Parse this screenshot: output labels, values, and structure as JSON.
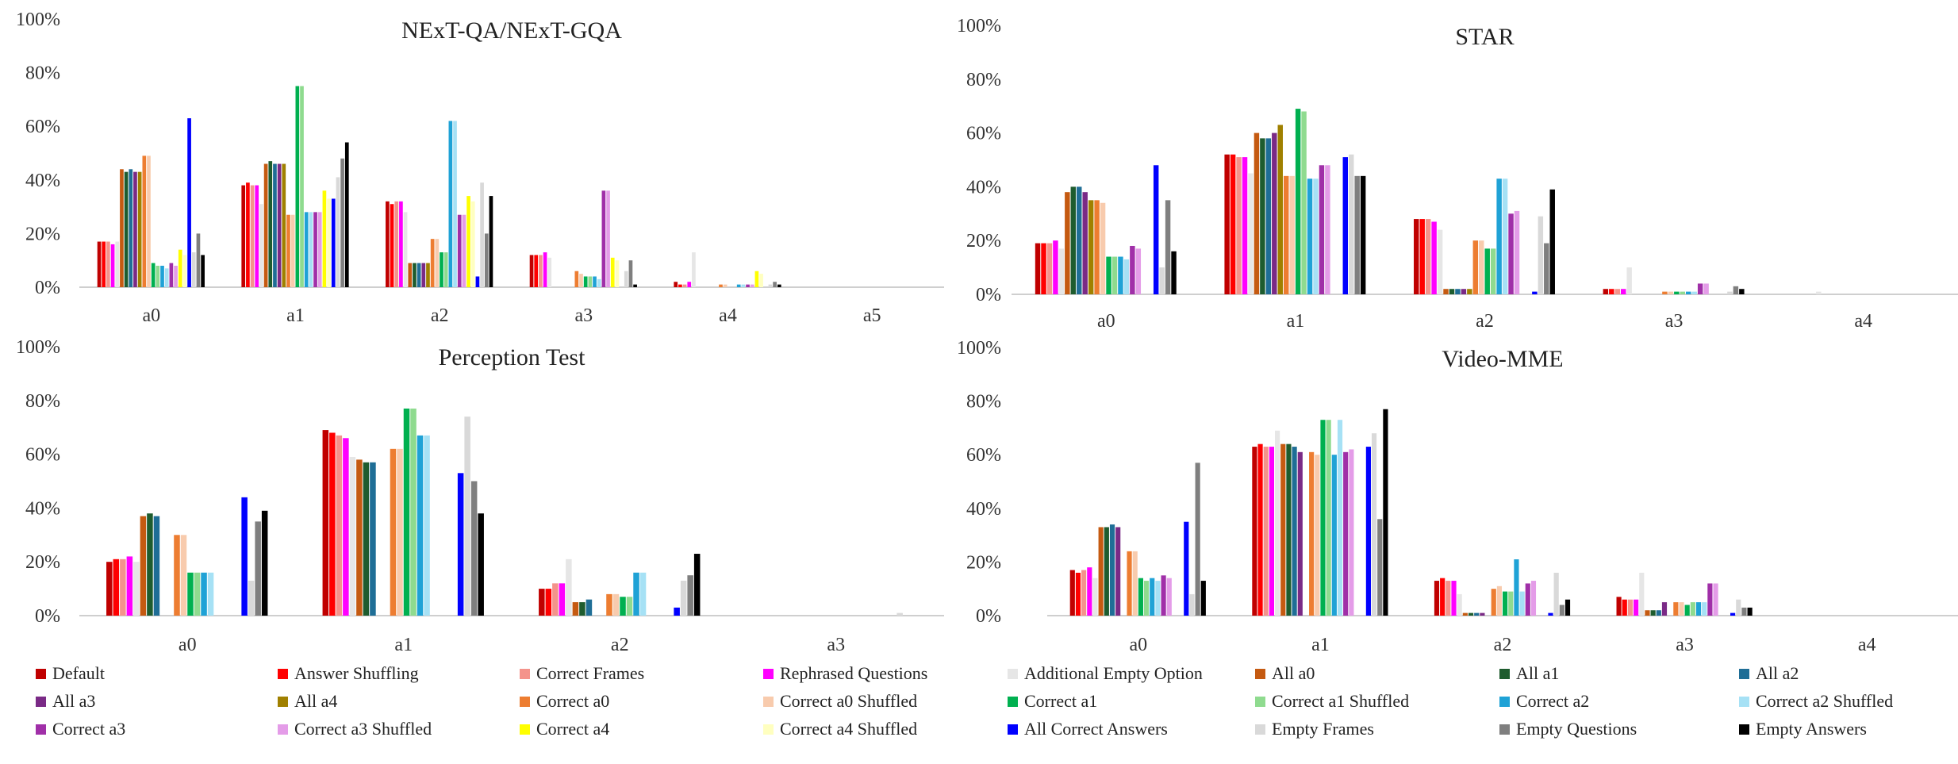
{
  "series_names": [
    "Default",
    "Answer Shuffling",
    "Correct Frames",
    "Rephrased Questions",
    "Additional Empty Option",
    "All a0",
    "All a1",
    "All a2",
    "All a3",
    "All a4",
    "Correct a0",
    "Correct a0 Shuffled",
    "Correct a1",
    "Correct a1 Shuffled",
    "Correct a2",
    "Correct a2 Shuffled",
    "Correct a3",
    "Correct a3 Shuffled",
    "Correct a4",
    "Correct a4 Shuffled",
    "All Correct Answers",
    "Empty Frames",
    "Empty Questions",
    "Empty Answers"
  ],
  "series_colors": [
    "#c00000",
    "#ff0000",
    "#f4938b",
    "#ff00ff",
    "#e6e6e6",
    "#c55a11",
    "#1e5c2e",
    "#1f6e96",
    "#7a2a86",
    "#a08000",
    "#ed7d31",
    "#f8cbad",
    "#00b050",
    "#8fdb8f",
    "#1fa2d6",
    "#a6e1f5",
    "#a02fa8",
    "#e49ce8",
    "#ffff00",
    "#ffffc0",
    "#0000ff",
    "#d9d9d9",
    "#7f7f7f",
    "#000000"
  ],
  "chart_data": [
    {
      "type": "bar",
      "title": "NExT-QA/NExT-GQA",
      "categories": [
        "a0",
        "a1",
        "a2",
        "a3",
        "a4",
        "a5"
      ],
      "ylim": [
        0,
        100
      ],
      "yticks": [
        "0%",
        "20%",
        "40%",
        "60%",
        "80%",
        "100%"
      ],
      "series": [
        {
          "name": "Default",
          "values": [
            17,
            38,
            32,
            12,
            2,
            0
          ]
        },
        {
          "name": "Answer Shuffling",
          "values": [
            17,
            39,
            31,
            12,
            1,
            0
          ]
        },
        {
          "name": "Correct Frames",
          "values": [
            17,
            38,
            32,
            12,
            1,
            0
          ]
        },
        {
          "name": "Rephrased Questions",
          "values": [
            16,
            38,
            32,
            13,
            2,
            0
          ]
        },
        {
          "name": "Additional Empty Option",
          "values": [
            17,
            31,
            28,
            11,
            13,
            0
          ]
        },
        {
          "name": "All a0",
          "values": [
            44,
            46,
            9,
            0,
            0,
            0
          ]
        },
        {
          "name": "All a1",
          "values": [
            43,
            47,
            9,
            0,
            0,
            0
          ]
        },
        {
          "name": "All a2",
          "values": [
            44,
            46,
            9,
            0,
            0,
            0
          ]
        },
        {
          "name": "All a3",
          "values": [
            43,
            46,
            9,
            0,
            0,
            0
          ]
        },
        {
          "name": "All a4",
          "values": [
            43,
            46,
            9,
            0,
            0,
            0
          ]
        },
        {
          "name": "Correct a0",
          "values": [
            49,
            27,
            18,
            6,
            1,
            0
          ]
        },
        {
          "name": "Correct a0 Shuffled",
          "values": [
            49,
            27,
            18,
            5,
            1,
            0
          ]
        },
        {
          "name": "Correct a1",
          "values": [
            9,
            75,
            13,
            4,
            0,
            0
          ]
        },
        {
          "name": "Correct a1 Shuffled",
          "values": [
            8,
            75,
            13,
            4,
            0,
            0
          ]
        },
        {
          "name": "Correct a2",
          "values": [
            8,
            28,
            62,
            4,
            1,
            0
          ]
        },
        {
          "name": "Correct a2 Shuffled",
          "values": [
            7,
            28,
            62,
            3,
            1,
            0
          ]
        },
        {
          "name": "Correct a3",
          "values": [
            9,
            28,
            27,
            36,
            1,
            0
          ]
        },
        {
          "name": "Correct a3 Shuffled",
          "values": [
            8,
            28,
            27,
            36,
            1,
            0
          ]
        },
        {
          "name": "Correct a4",
          "values": [
            14,
            36,
            34,
            11,
            6,
            0
          ]
        },
        {
          "name": "Correct a4 Shuffled",
          "values": [
            12,
            33,
            32,
            10,
            5,
            0
          ]
        },
        {
          "name": "All Correct Answers",
          "values": [
            63,
            33,
            4,
            0,
            0,
            0
          ]
        },
        {
          "name": "Empty Frames",
          "values": [
            13,
            41,
            39,
            6,
            1,
            0
          ]
        },
        {
          "name": "Empty Questions",
          "values": [
            20,
            48,
            20,
            10,
            2,
            0
          ]
        },
        {
          "name": "Empty Answers",
          "values": [
            12,
            54,
            34,
            1,
            1,
            0
          ]
        }
      ]
    },
    {
      "type": "bar",
      "title": "STAR",
      "categories": [
        "a0",
        "a1",
        "a2",
        "a3",
        "a4"
      ],
      "ylim": [
        0,
        100
      ],
      "yticks": [
        "0%",
        "20%",
        "40%",
        "60%",
        "80%",
        "100%"
      ],
      "series": [
        {
          "name": "Default",
          "values": [
            19,
            52,
            28,
            2,
            0
          ]
        },
        {
          "name": "Answer Shuffling",
          "values": [
            19,
            52,
            28,
            2,
            0
          ]
        },
        {
          "name": "Correct Frames",
          "values": [
            19,
            51,
            28,
            2,
            0
          ]
        },
        {
          "name": "Rephrased Questions",
          "values": [
            20,
            51,
            27,
            2,
            0
          ]
        },
        {
          "name": "Additional Empty Option",
          "values": [
            17,
            45,
            24,
            10,
            1
          ]
        },
        {
          "name": "All a0",
          "values": [
            38,
            60,
            2,
            0,
            0
          ]
        },
        {
          "name": "All a1",
          "values": [
            40,
            58,
            2,
            0,
            0
          ]
        },
        {
          "name": "All a2",
          "values": [
            40,
            58,
            2,
            0,
            0
          ]
        },
        {
          "name": "All a3",
          "values": [
            38,
            60,
            2,
            0,
            0
          ]
        },
        {
          "name": "All a4",
          "values": [
            35,
            63,
            2,
            0,
            0
          ]
        },
        {
          "name": "Correct a0",
          "values": [
            35,
            44,
            20,
            1,
            0
          ]
        },
        {
          "name": "Correct a0 Shuffled",
          "values": [
            34,
            44,
            20,
            1,
            0
          ]
        },
        {
          "name": "Correct a1",
          "values": [
            14,
            69,
            17,
            1,
            0
          ]
        },
        {
          "name": "Correct a1 Shuffled",
          "values": [
            14,
            68,
            17,
            1,
            0
          ]
        },
        {
          "name": "Correct a2",
          "values": [
            14,
            43,
            43,
            1,
            0
          ]
        },
        {
          "name": "Correct a2 Shuffled",
          "values": [
            13,
            43,
            43,
            1,
            0
          ]
        },
        {
          "name": "Correct a3",
          "values": [
            18,
            48,
            30,
            4,
            0
          ]
        },
        {
          "name": "Correct a3 Shuffled",
          "values": [
            17,
            48,
            31,
            4,
            0
          ]
        },
        {
          "name": "Correct a4",
          "values": [
            0,
            0,
            0,
            0,
            0
          ]
        },
        {
          "name": "Correct a4 Shuffled",
          "values": [
            0,
            0,
            0,
            0,
            0
          ]
        },
        {
          "name": "All Correct Answers",
          "values": [
            48,
            51,
            1,
            0,
            0
          ]
        },
        {
          "name": "Empty Frames",
          "values": [
            10,
            52,
            29,
            1,
            0
          ]
        },
        {
          "name": "Empty Questions",
          "values": [
            35,
            44,
            19,
            3,
            0
          ]
        },
        {
          "name": "Empty Answers",
          "values": [
            16,
            44,
            39,
            2,
            0
          ]
        }
      ]
    },
    {
      "type": "bar",
      "title": "Perception Test",
      "categories": [
        "a0",
        "a1",
        "a2",
        "a3"
      ],
      "ylim": [
        0,
        100
      ],
      "yticks": [
        "0%",
        "20%",
        "40%",
        "60%",
        "80%",
        "100%"
      ],
      "series": [
        {
          "name": "Default",
          "values": [
            20,
            69,
            10,
            0
          ]
        },
        {
          "name": "Answer Shuffling",
          "values": [
            21,
            68,
            10,
            0
          ]
        },
        {
          "name": "Correct Frames",
          "values": [
            21,
            67,
            12,
            0
          ]
        },
        {
          "name": "Rephrased Questions",
          "values": [
            22,
            66,
            12,
            0
          ]
        },
        {
          "name": "Additional Empty Option",
          "values": [
            20,
            59,
            21,
            0
          ]
        },
        {
          "name": "All a0",
          "values": [
            37,
            58,
            5,
            0
          ]
        },
        {
          "name": "All a1",
          "values": [
            38,
            57,
            5,
            0
          ]
        },
        {
          "name": "All a2",
          "values": [
            37,
            57,
            6,
            0
          ]
        },
        {
          "name": "All a3",
          "values": [
            0,
            0,
            0,
            0
          ]
        },
        {
          "name": "All a4",
          "values": [
            0,
            0,
            0,
            0
          ]
        },
        {
          "name": "Correct a0",
          "values": [
            30,
            62,
            8,
            0
          ]
        },
        {
          "name": "Correct a0 Shuffled",
          "values": [
            30,
            62,
            8,
            0
          ]
        },
        {
          "name": "Correct a1",
          "values": [
            16,
            77,
            7,
            0
          ]
        },
        {
          "name": "Correct a1 Shuffled",
          "values": [
            16,
            77,
            7,
            0
          ]
        },
        {
          "name": "Correct a2",
          "values": [
            16,
            67,
            16,
            0
          ]
        },
        {
          "name": "Correct a2 Shuffled",
          "values": [
            16,
            67,
            16,
            0
          ]
        },
        {
          "name": "Correct a3",
          "values": [
            0,
            0,
            0,
            0
          ]
        },
        {
          "name": "Correct a3 Shuffled",
          "values": [
            0,
            0,
            0,
            0
          ]
        },
        {
          "name": "Correct a4",
          "values": [
            0,
            0,
            0,
            0
          ]
        },
        {
          "name": "Correct a4 Shuffled",
          "values": [
            0,
            0,
            0,
            0
          ]
        },
        {
          "name": "All Correct Answers",
          "values": [
            44,
            53,
            3,
            0
          ]
        },
        {
          "name": "Empty Frames",
          "values": [
            13,
            74,
            13,
            1
          ]
        },
        {
          "name": "Empty Questions",
          "values": [
            35,
            50,
            15,
            0
          ]
        },
        {
          "name": "Empty Answers",
          "values": [
            39,
            38,
            23,
            0
          ]
        }
      ]
    },
    {
      "type": "bar",
      "title": "Video-MME",
      "categories": [
        "a0",
        "a1",
        "a2",
        "a3",
        "a4"
      ],
      "ylim": [
        0,
        100
      ],
      "yticks": [
        "0%",
        "20%",
        "40%",
        "60%",
        "80%",
        "100%"
      ],
      "series": [
        {
          "name": "Default",
          "values": [
            17,
            63,
            13,
            7,
            0
          ]
        },
        {
          "name": "Answer Shuffling",
          "values": [
            16,
            64,
            14,
            6,
            0
          ]
        },
        {
          "name": "Correct Frames",
          "values": [
            17,
            63,
            13,
            6,
            0
          ]
        },
        {
          "name": "Rephrased Questions",
          "values": [
            18,
            63,
            13,
            6,
            0
          ]
        },
        {
          "name": "Additional Empty Option",
          "values": [
            14,
            69,
            8,
            16,
            0
          ]
        },
        {
          "name": "All a0",
          "values": [
            33,
            64,
            1,
            2,
            0
          ]
        },
        {
          "name": "All a1",
          "values": [
            33,
            64,
            1,
            2,
            0
          ]
        },
        {
          "name": "All a2",
          "values": [
            34,
            63,
            1,
            2,
            0
          ]
        },
        {
          "name": "All a3",
          "values": [
            33,
            61,
            1,
            5,
            0
          ]
        },
        {
          "name": "All a4",
          "values": [
            0,
            0,
            0,
            0,
            0
          ]
        },
        {
          "name": "Correct a0",
          "values": [
            24,
            61,
            10,
            5,
            0
          ]
        },
        {
          "name": "Correct a0 Shuffled",
          "values": [
            24,
            60,
            11,
            5,
            0
          ]
        },
        {
          "name": "Correct a1",
          "values": [
            14,
            73,
            9,
            4,
            0
          ]
        },
        {
          "name": "Correct a1 Shuffled",
          "values": [
            13,
            73,
            9,
            5,
            0
          ]
        },
        {
          "name": "Correct a2",
          "values": [
            14,
            60,
            21,
            5,
            0
          ]
        },
        {
          "name": "Correct a2 Shuffled",
          "values": [
            13,
            73,
            9,
            5,
            0
          ]
        },
        {
          "name": "Correct a3",
          "values": [
            15,
            61,
            12,
            12,
            0
          ]
        },
        {
          "name": "Correct a3 Shuffled",
          "values": [
            14,
            62,
            13,
            12,
            0
          ]
        },
        {
          "name": "Correct a4",
          "values": [
            0,
            0,
            0,
            0,
            0
          ]
        },
        {
          "name": "Correct a4 Shuffled",
          "values": [
            0,
            0,
            0,
            0,
            0
          ]
        },
        {
          "name": "All Correct Answers",
          "values": [
            35,
            63,
            1,
            1,
            0
          ]
        },
        {
          "name": "Empty Frames",
          "values": [
            8,
            68,
            16,
            6,
            0
          ]
        },
        {
          "name": "Empty Questions",
          "values": [
            57,
            36,
            4,
            3,
            0
          ]
        },
        {
          "name": "Empty Answers",
          "values": [
            13,
            77,
            6,
            3,
            0
          ]
        }
      ]
    }
  ]
}
